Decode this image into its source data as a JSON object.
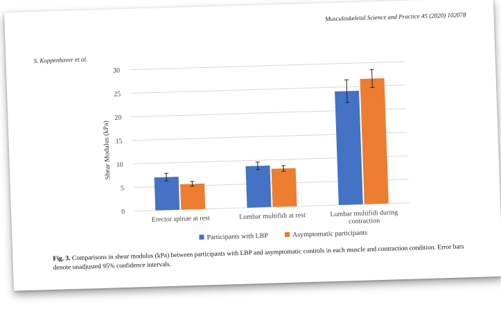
{
  "page": {
    "journal_header": "Musculoskeletal Science and Practice 45 (2020) 102078",
    "author_header": "S. Koppenhaver et al."
  },
  "figure": {
    "label": "Fig. 3.",
    "caption": "Comparisons in shear modulus (kPa) between participants with LBP and asymptomatic controls in each muscle and contraction condition. Error bars denote unadjusted 95% confidence intervals."
  },
  "chart_data": {
    "type": "bar",
    "title": "",
    "ylabel": "Shear Modulus (kPa)",
    "xlabel": "",
    "ylim": [
      0,
      30
    ],
    "yticks": [
      0,
      5,
      10,
      15,
      20,
      25,
      30
    ],
    "grid": true,
    "legend_position": "bottom",
    "categories": [
      [
        "Erector spinae at rest"
      ],
      [
        "Lumbar multifidi at rest"
      ],
      [
        "Lumbar multifidi during",
        "contraction"
      ]
    ],
    "series": [
      {
        "name": "Participants with LBP",
        "color": "#4472C4",
        "values": [
          7.0,
          8.8,
          24.1
        ],
        "error": [
          0.8,
          0.8,
          2.4
        ]
      },
      {
        "name": "Asymptomatic participants",
        "color": "#ED7D31",
        "values": [
          5.4,
          8.1,
          26.6
        ],
        "error": [
          0.5,
          0.6,
          1.9
        ]
      }
    ]
  }
}
